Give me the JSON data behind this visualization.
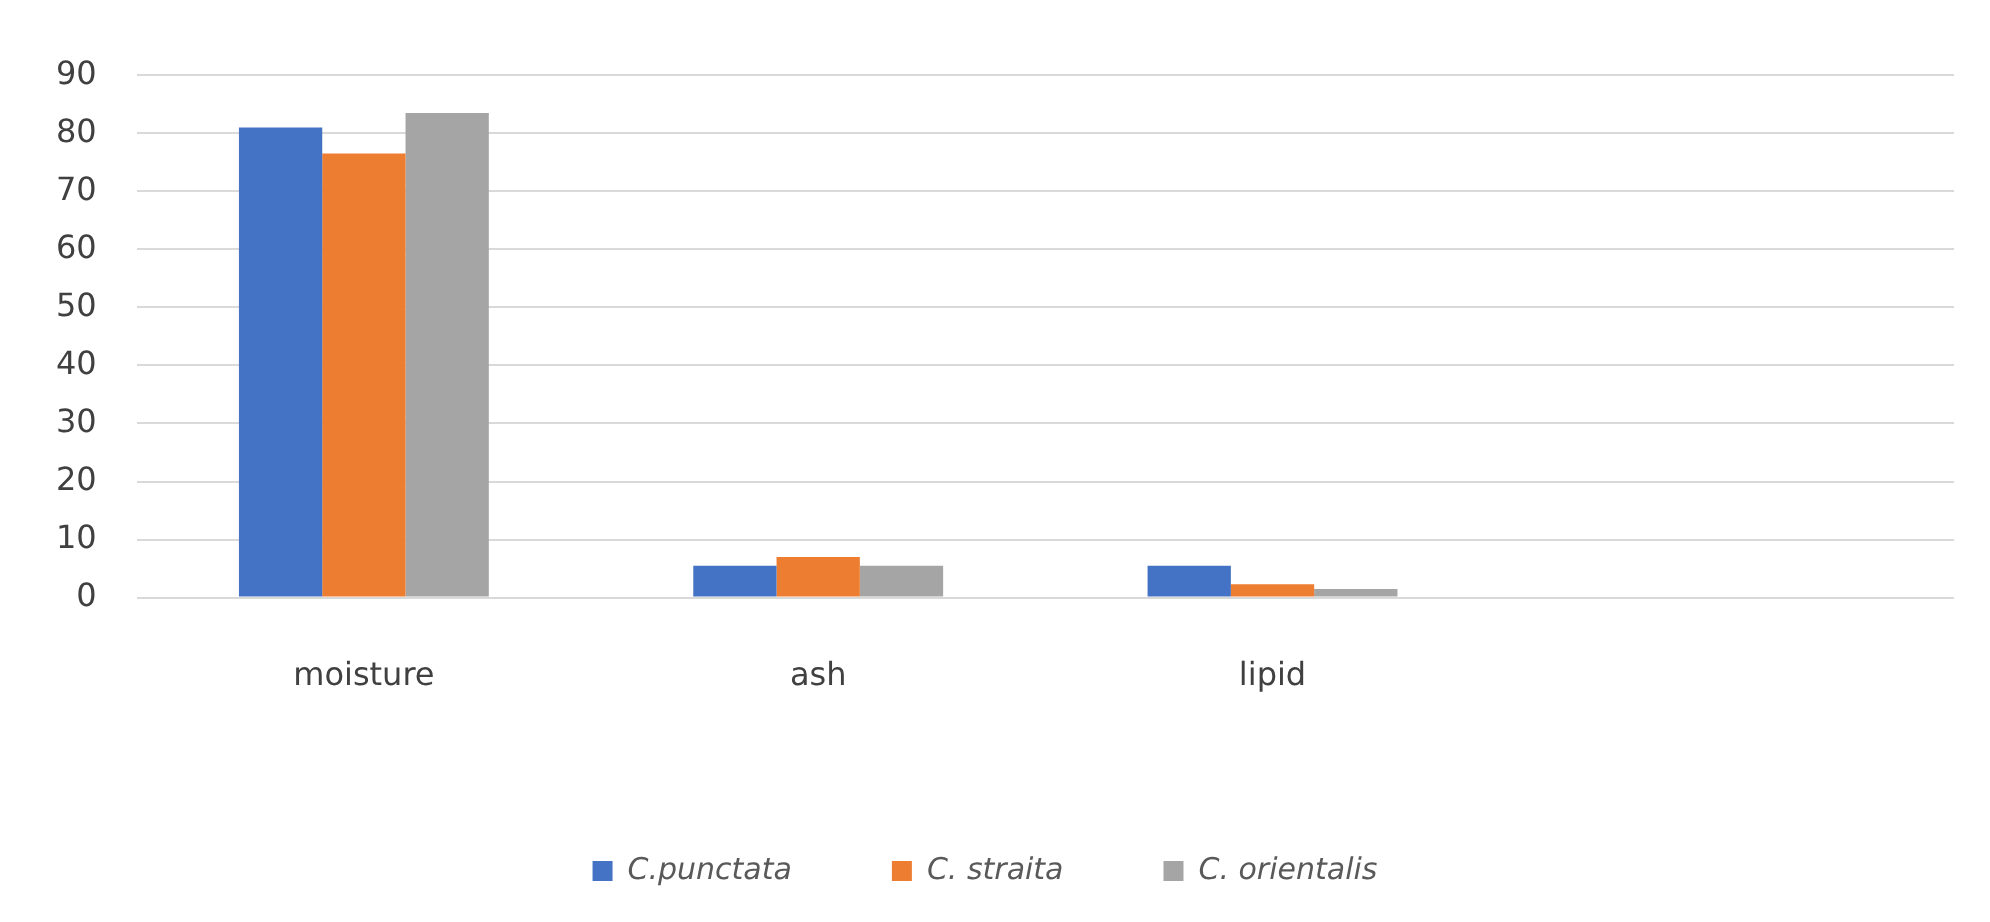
{
  "chart_data": {
    "type": "bar",
    "categories": [
      "moisture",
      "ash",
      "lipid",
      null
    ],
    "series": [
      {
        "name": "C.punctata",
        "color": "#4472c4",
        "values": [
          81,
          5.5,
          5.5,
          null
        ]
      },
      {
        "name": "C. straita",
        "color": "#ed7d31",
        "values": [
          76.5,
          7,
          2.3,
          null
        ]
      },
      {
        "name": "C. orientalis",
        "color": "#a5a5a5",
        "values": [
          83.5,
          5.5,
          1.5,
          null
        ]
      }
    ],
    "ylim": [
      0,
      90
    ],
    "yticks": [
      0,
      10,
      20,
      30,
      40,
      50,
      60,
      70,
      80,
      90
    ],
    "grid": "y",
    "legend": "bottom"
  }
}
